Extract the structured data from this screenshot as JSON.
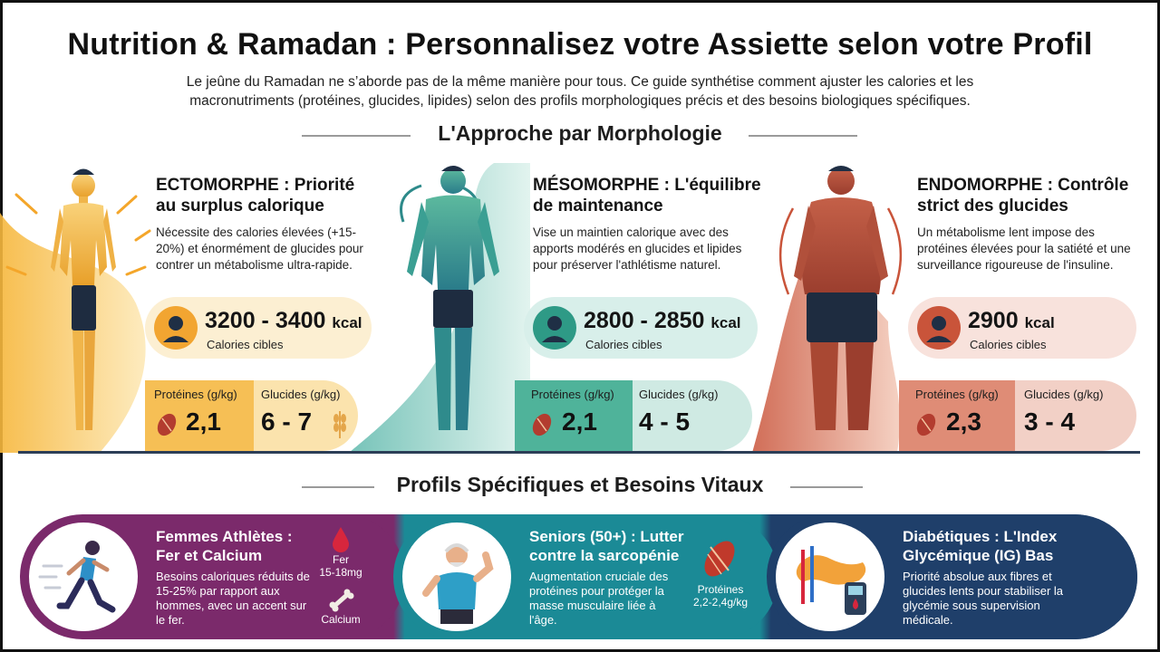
{
  "header": {
    "title": "Nutrition & Ramadan : Personnalisez votre Assiette selon votre Profil",
    "subtitle": "Le jeûne du Ramadan ne s’aborde pas de la même manière pour tous. Ce guide synthétise comment ajuster les calories et les macronutriments (protéines, glucides, lipides) selon des profils morphologiques précis et des besoins biologiques spécifiques."
  },
  "section1": {
    "heading": "L'Approche par Morphologie"
  },
  "section2": {
    "heading": "Profils Spécifiques et Besoins Vitaux"
  },
  "morphologies": [
    {
      "title_line1": "ECTOMORPHE : Priorité",
      "title_line2": "au surplus calorique",
      "desc": "Nécessite des calories élevées (+15-20%) et énormément de glucides pour contrer un métabolisme ultra-rapide.",
      "kcal": "3200 - 3400",
      "kcal_unit": "kcal",
      "kcal_label": "Calories cibles",
      "protein_label": "Protéines (g/kg)",
      "protein_value": "2,1",
      "carbs_label": "Glucides (g/kg)",
      "carbs_value": "6 - 7",
      "color": "#f2a531"
    },
    {
      "title_line1": "MÉSOMORPHE : L'équilibre",
      "title_line2": "de maintenance",
      "desc": "Vise un maintien calorique avec des apports modérés en glucides et lipides pour préserver l'athlétisme naturel.",
      "kcal": "2800 - 2850",
      "kcal_unit": "kcal",
      "kcal_label": "Calories cibles",
      "protein_label": "Protéines (g/kg)",
      "protein_value": "2,1",
      "carbs_label": "Glucides (g/kg)",
      "carbs_value": "4 - 5",
      "color": "#2e9a86"
    },
    {
      "title_line1": "ENDOMORPHE : Contrôle",
      "title_line2": "strict des glucides",
      "desc": "Un métabolisme lent impose des protéines élevées pour la satiété et une surveillance rigoureuse de l'insuline.",
      "kcal": "2900",
      "kcal_unit": "kcal",
      "kcal_label": "Calories cibles",
      "protein_label": "Protéines (g/kg)",
      "protein_value": "2,3",
      "carbs_label": "Glucides (g/kg)",
      "carbs_value": "3 - 4",
      "color": "#c9543a"
    }
  ],
  "profiles": [
    {
      "title_line1": "Femmes Athlètes :",
      "title_line2": "Fer et Calcium",
      "desc": "Besoins caloriques réduits de 15-25% par rapport aux hommes, avec un accent sur le fer.",
      "side1": "Fer",
      "side2": "15-18mg",
      "side3": "Calcium",
      "color": "#7b2a6b"
    },
    {
      "title_line1": "Seniors (50+) : Lutter",
      "title_line2": "contre la sarcopénie",
      "desc": "Augmentation cruciale des protéines pour protéger la masse musculaire liée à l'âge.",
      "side1": "Protéines",
      "side2": "2,2-2,4g/kg",
      "color": "#1b8a96"
    },
    {
      "title_line1": "Diabétiques : L'Index",
      "title_line2": "Glycémique (IG) Bas",
      "desc": "Priorité absolue aux fibres et glucides lents pour stabiliser la glycémie sous supervision médicale.",
      "color": "#1f3f6a"
    }
  ]
}
